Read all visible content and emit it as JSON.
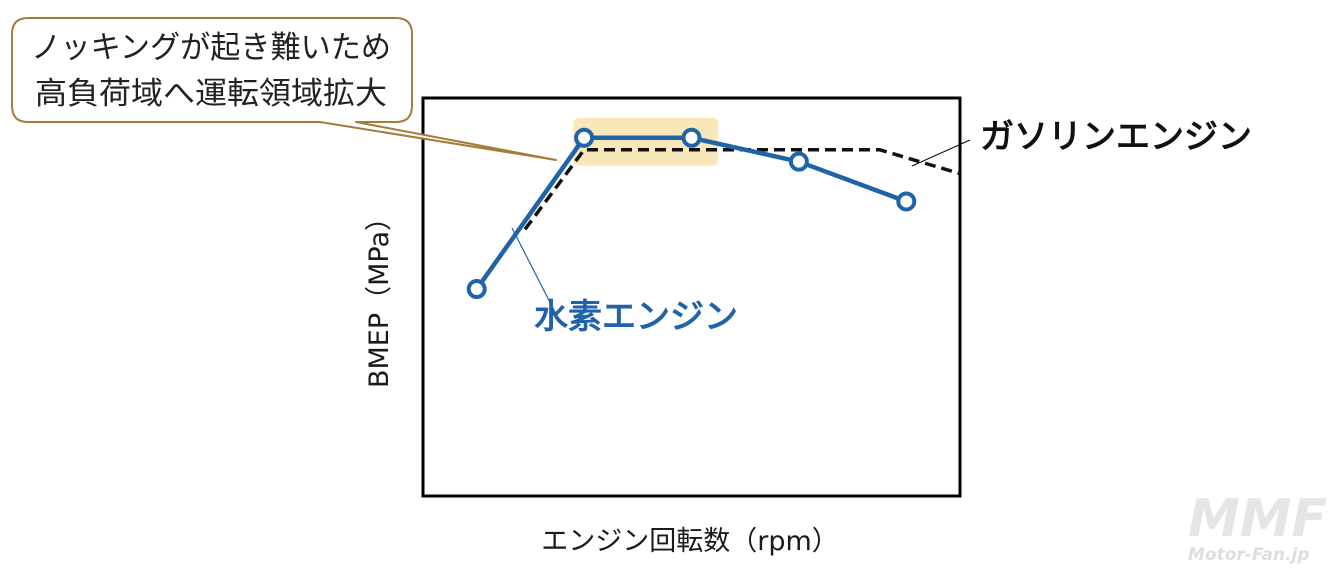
{
  "chart_data": {
    "type": "line",
    "title": "",
    "xlabel": "エンジン回転数（rpm）",
    "ylabel": "BMEP（MPa）",
    "xlim": [
      0,
      10
    ],
    "ylim": [
      0,
      10
    ],
    "grid": false,
    "series": [
      {
        "name": "水素エンジン",
        "color": "#1f63a8",
        "style": "solid",
        "marker": "open-circle",
        "x": [
          1,
          3,
          5,
          7,
          9
        ],
        "y": [
          5.2,
          9.0,
          9.0,
          8.4,
          7.4
        ]
      },
      {
        "name": "ガソリンエンジン",
        "color": "#111111",
        "style": "dashed",
        "marker": "none",
        "x": [
          1.9,
          3.0,
          8.5,
          10.0
        ],
        "y": [
          6.7,
          8.7,
          8.7,
          8.1
        ]
      }
    ],
    "highlight_region": {
      "x": [
        2.8,
        5.5
      ],
      "y": [
        8.3,
        9.5
      ],
      "color": "#f8e7b8"
    },
    "annotations": {
      "callout_lines": [
        "ノッキングが起き難いため",
        "高負荷域へ運転領域拡大"
      ],
      "callout_border_color": "#a67c3a"
    }
  },
  "watermark": {
    "logo_text": "MMF",
    "site_text": "Motor-Fan.jp"
  }
}
